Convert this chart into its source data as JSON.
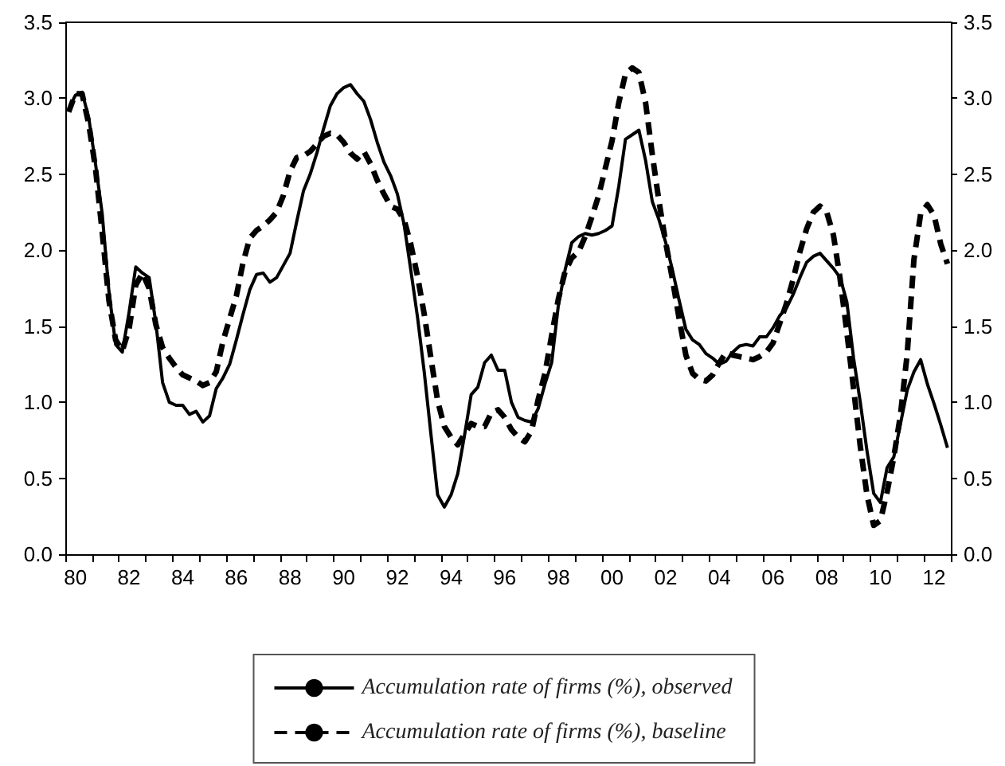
{
  "chart_data": {
    "type": "line",
    "legend": "bottom",
    "grid": false,
    "marker": "none",
    "categories": [
      null,
      "80",
      null,
      null,
      null,
      null,
      null,
      null,
      null,
      "82",
      null,
      null,
      null,
      null,
      null,
      null,
      null,
      "84",
      null,
      null,
      null,
      null,
      null,
      null,
      null,
      "86",
      null,
      null,
      null,
      null,
      null,
      null,
      null,
      "88",
      null,
      null,
      null,
      null,
      null,
      null,
      null,
      "90",
      null,
      null,
      null,
      null,
      null,
      null,
      null,
      "92",
      null,
      null,
      null,
      null,
      null,
      null,
      null,
      "94",
      null,
      null,
      null,
      null,
      null,
      null,
      null,
      "96",
      null,
      null,
      null,
      null,
      null,
      null,
      null,
      "98",
      null,
      null,
      null,
      null,
      null,
      null,
      null,
      "00",
      null,
      null,
      null,
      null,
      null,
      null,
      null,
      "02",
      null,
      null,
      null,
      null,
      null,
      null,
      null,
      "04",
      null,
      null,
      null,
      null,
      null,
      null,
      null,
      "06",
      null,
      null,
      null,
      null,
      null,
      null,
      null,
      "08",
      null,
      null,
      null,
      null,
      null,
      null,
      null,
      "10",
      null,
      null,
      null,
      null,
      null,
      null,
      null,
      "12",
      null,
      null
    ],
    "ylim": [
      0,
      3.5
    ],
    "yticks": [
      {
        "value": 0,
        "label": "0.0"
      },
      {
        "value": 0.5,
        "label": "0.5"
      },
      {
        "value": 1,
        "label": "1.0"
      },
      {
        "value": 1.5,
        "label": "1.5"
      },
      {
        "value": 2,
        "label": "2.0"
      },
      {
        "value": 2.5,
        "label": "2.5"
      },
      {
        "value": 3,
        "label": "3.0"
      },
      {
        "value": 3.5,
        "label": "3.5"
      }
    ],
    "y2lim": [
      0,
      3.5
    ],
    "y2ticks": [
      {
        "value": 0,
        "label": "0.0"
      },
      {
        "value": 0.5,
        "label": "0.5"
      },
      {
        "value": 1,
        "label": "1.0"
      },
      {
        "value": 1.5,
        "label": "1.5"
      },
      {
        "value": 2,
        "label": "2.0"
      },
      {
        "value": 2.5,
        "label": "2.5"
      },
      {
        "value": 3,
        "label": "3.0"
      },
      {
        "value": 3.5,
        "label": "3.5"
      }
    ],
    "series": [
      {
        "name": "Accumulation rate of firms (%), observed",
        "color": "#000000",
        "line_style": "solid",
        "values": [
          2.93,
          3.02,
          3.04,
          2.87,
          2.57,
          2.24,
          1.73,
          1.38,
          1.33,
          1.59,
          1.89,
          1.85,
          1.82,
          1.52,
          1.13,
          1.0,
          0.98,
          0.98,
          0.92,
          0.94,
          0.87,
          0.91,
          1.09,
          1.16,
          1.25,
          1.41,
          1.58,
          1.74,
          1.84,
          1.85,
          1.79,
          1.82,
          1.9,
          1.98,
          2.19,
          2.39,
          2.5,
          2.64,
          2.8,
          2.95,
          3.03,
          3.07,
          3.09,
          3.03,
          2.98,
          2.86,
          2.71,
          2.58,
          2.49,
          2.37,
          2.17,
          1.87,
          1.56,
          1.2,
          0.79,
          0.39,
          0.31,
          0.39,
          0.53,
          0.78,
          1.05,
          1.1,
          1.26,
          1.31,
          1.21,
          1.21,
          1.0,
          0.9,
          0.88,
          0.87,
          0.96,
          1.12,
          1.26,
          1.64,
          1.87,
          2.05,
          2.09,
          2.11,
          2.1,
          2.11,
          2.13,
          2.16,
          2.42,
          2.73,
          2.76,
          2.79,
          2.59,
          2.32,
          2.2,
          2.05,
          1.87,
          1.67,
          1.48,
          1.41,
          1.38,
          1.32,
          1.29,
          1.25,
          1.27,
          1.33,
          1.37,
          1.38,
          1.37,
          1.43,
          1.43,
          1.49,
          1.57,
          1.62,
          1.71,
          1.82,
          1.92,
          1.96,
          1.98,
          1.93,
          1.88,
          1.82,
          1.66,
          1.29,
          1.0,
          0.68,
          0.4,
          0.34,
          0.57,
          0.64,
          0.86,
          1.08,
          1.2,
          1.28,
          1.12,
          0.99,
          0.85,
          0.7
        ]
      },
      {
        "name": "Accumulation rate of firms (%), baseline",
        "color": "#000000",
        "line_style": "dashed",
        "values": [
          2.91,
          3.03,
          3.03,
          2.83,
          2.54,
          2.12,
          1.67,
          1.41,
          1.34,
          1.48,
          1.77,
          1.85,
          1.75,
          1.51,
          1.36,
          1.29,
          1.23,
          1.18,
          1.16,
          1.14,
          1.11,
          1.13,
          1.2,
          1.4,
          1.55,
          1.7,
          1.92,
          2.08,
          2.13,
          2.16,
          2.2,
          2.25,
          2.36,
          2.52,
          2.61,
          2.62,
          2.65,
          2.7,
          2.75,
          2.77,
          2.76,
          2.71,
          2.64,
          2.6,
          2.65,
          2.57,
          2.46,
          2.37,
          2.29,
          2.27,
          2.2,
          2.04,
          1.83,
          1.58,
          1.29,
          1.01,
          0.84,
          0.77,
          0.72,
          0.79,
          0.86,
          0.84,
          0.84,
          0.93,
          0.95,
          0.9,
          0.82,
          0.77,
          0.74,
          0.81,
          1.02,
          1.19,
          1.44,
          1.68,
          1.86,
          1.95,
          1.99,
          2.09,
          2.22,
          2.36,
          2.54,
          2.72,
          2.97,
          3.16,
          3.2,
          3.17,
          2.97,
          2.63,
          2.32,
          2.05,
          1.81,
          1.55,
          1.31,
          1.19,
          1.15,
          1.14,
          1.18,
          1.26,
          1.33,
          1.31,
          1.3,
          1.29,
          1.28,
          1.3,
          1.33,
          1.39,
          1.52,
          1.65,
          1.81,
          1.99,
          2.14,
          2.25,
          2.29,
          2.25,
          2.1,
          1.81,
          1.46,
          1.09,
          0.71,
          0.39,
          0.19,
          0.22,
          0.41,
          0.64,
          0.92,
          1.32,
          1.94,
          2.24,
          2.3,
          2.23,
          2.04,
          1.91
        ]
      }
    ]
  }
}
